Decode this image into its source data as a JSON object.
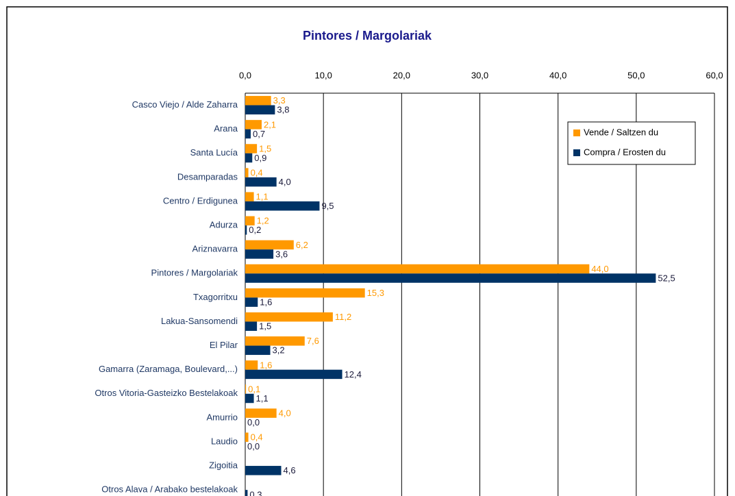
{
  "chart_data": {
    "type": "hbar",
    "title": "Pintores / Margolariak",
    "categories": [
      "Casco Viejo / Alde Zaharra",
      "Arana",
      "Santa Lucía",
      "Desamparadas",
      "Centro / Erdigunea",
      "Adurza",
      "Ariznavarra",
      "Pintores / Margolariak",
      "Txagorritxu",
      "Lakua-Sansomendi",
      "El Pilar",
      "Gamarra (Zaramaga, Boulevard,...)",
      "Otros Vitoria-Gasteizko Bestelakoak",
      "Amurrio",
      "Laudio",
      "Zigoitia",
      "Otros Alava / Arabako bestelakoak"
    ],
    "series": [
      {
        "name": "Vende / Saltzen du",
        "color": "#ff9900",
        "values": [
          3.3,
          2.1,
          1.5,
          0.4,
          1.1,
          1.2,
          6.2,
          44.0,
          15.3,
          11.2,
          7.6,
          1.6,
          0.1,
          4.0,
          0.4,
          null,
          null
        ],
        "value_labels": [
          "3,3",
          "2,1",
          "1,5",
          "0,4",
          "1,1",
          "1,2",
          "6,2",
          "44,0",
          "15,3",
          "11,2",
          "7,6",
          "1,6",
          "0,1",
          "4,0",
          "0,4",
          null,
          null
        ]
      },
      {
        "name": "Compra / Erosten du",
        "color": "#003366",
        "values": [
          3.8,
          0.7,
          0.9,
          4.0,
          9.5,
          0.2,
          3.6,
          52.5,
          1.6,
          1.5,
          3.2,
          12.4,
          1.1,
          0.0,
          0.0,
          4.6,
          0.3
        ],
        "value_labels": [
          "3,8",
          "0,7",
          "0,9",
          "4,0",
          "9,5",
          "0,2",
          "3,6",
          "52,5",
          "1,6",
          "1,5",
          "3,2",
          "12,4",
          "1,1",
          "0,0",
          "0,0",
          "4,6",
          "0,3"
        ]
      }
    ],
    "xlim": [
      0,
      60
    ],
    "xticks": [
      {
        "value": 0,
        "label": "0,0"
      },
      {
        "value": 10,
        "label": "10,0"
      },
      {
        "value": 20,
        "label": "20,0"
      },
      {
        "value": 30,
        "label": "30,0"
      },
      {
        "value": 40,
        "label": "40,0"
      },
      {
        "value": 50,
        "label": "50,0"
      },
      {
        "value": 60,
        "label": "60,0"
      }
    ],
    "grid": true,
    "legend": "upper right"
  }
}
